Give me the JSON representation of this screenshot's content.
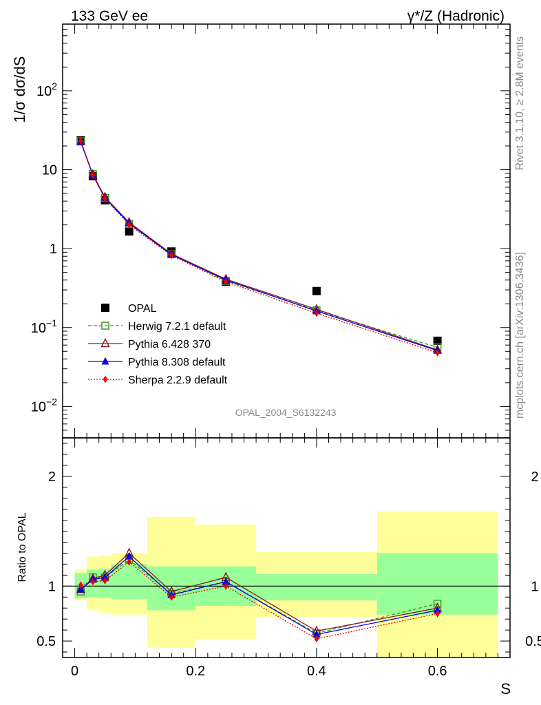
{
  "header": {
    "left_title": "133 GeV ee",
    "right_title": "γ*/Z (Hadronic)"
  },
  "side_labels": {
    "rivet": "Rivet 3.1.10, ≥ 2.8M events",
    "mcplots": "mcplots.cern.ch [arXiv:1306.3436]"
  },
  "watermark": "OPAL_2004_S6132243",
  "chart_data": [
    {
      "type": "scatter",
      "panel": "main",
      "ylabel": "1/σ dσ/dS",
      "y_scale": "log",
      "ylim": [
        0.004,
        700
      ],
      "xlim": [
        -0.02,
        0.72
      ],
      "y_tick_labels": [
        {
          "v": 0.01,
          "label": "10",
          "sup": "−2"
        },
        {
          "v": 0.1,
          "label": "10",
          "sup": "−1"
        },
        {
          "v": 1,
          "label": "1",
          "sup": ""
        },
        {
          "v": 10,
          "label": "10",
          "sup": ""
        },
        {
          "v": 100,
          "label": "10",
          "sup": "2"
        }
      ],
      "legend_position": "lower-left",
      "x": [
        0.01,
        0.03,
        0.05,
        0.09,
        0.16,
        0.25,
        0.4,
        0.6
      ],
      "series": [
        {
          "name": "OPAL",
          "marker": "square-filled",
          "color": "#000000",
          "values": [
            23.5,
            8.3,
            4.1,
            1.65,
            0.92,
            0.38,
            0.29,
            0.068
          ]
        },
        {
          "name": "Herwig 7.2.1 default",
          "marker": "square-open",
          "line": "dashed",
          "color": "#3a9a1a",
          "values": [
            23.0,
            8.8,
            4.4,
            2.05,
            0.85,
            0.39,
            0.165,
            0.056
          ]
        },
        {
          "name": "Pythia 6.428 370",
          "marker": "triangle-open",
          "line": "solid",
          "color": "#8b1a1a",
          "values": [
            22.6,
            8.7,
            4.5,
            2.15,
            0.86,
            0.41,
            0.17,
            0.052
          ]
        },
        {
          "name": "Pythia 8.308 default",
          "marker": "triangle-filled",
          "line": "solid",
          "color": "#0000ee",
          "values": [
            22.4,
            8.5,
            4.4,
            2.1,
            0.84,
            0.4,
            0.162,
            0.051
          ]
        },
        {
          "name": "Sherpa 2.2.9 default",
          "marker": "diamond-filled",
          "line": "dotted",
          "color": "#ee0000",
          "values": [
            23.3,
            8.5,
            4.3,
            2.0,
            0.82,
            0.38,
            0.152,
            0.048
          ]
        }
      ]
    },
    {
      "type": "line",
      "panel": "ratio",
      "ylabel": "Ratio to OPAL",
      "xlabel": "S",
      "ylim": [
        0.35,
        2.35
      ],
      "xlim": [
        -0.02,
        0.72
      ],
      "y_tick_labels": [
        {
          "v": 0.5,
          "label": "0.5"
        },
        {
          "v": 1,
          "label": "1"
        },
        {
          "v": 2,
          "label": "2"
        }
      ],
      "x_tick_labels": [
        {
          "v": 0,
          "label": "0"
        },
        {
          "v": 0.2,
          "label": "0.2"
        },
        {
          "v": 0.4,
          "label": "0.4"
        },
        {
          "v": 0.6,
          "label": "0.6"
        }
      ],
      "reference_line": 1,
      "uncertainty_bands": [
        {
          "lo": 0.0,
          "hi": 0.02,
          "inner": [
            0.89,
            1.12
          ],
          "outer": [
            0.87,
            1.15
          ]
        },
        {
          "lo": 0.02,
          "hi": 0.04,
          "inner": [
            0.9,
            1.15
          ],
          "outer": [
            0.78,
            1.27
          ]
        },
        {
          "lo": 0.04,
          "hi": 0.06,
          "inner": [
            0.89,
            1.16
          ],
          "outer": [
            0.75,
            1.28
          ]
        },
        {
          "lo": 0.06,
          "hi": 0.12,
          "inner": [
            0.88,
            1.2
          ],
          "outer": [
            0.74,
            1.3
          ]
        },
        {
          "lo": 0.12,
          "hi": 0.2,
          "inner": [
            0.78,
            1.18
          ],
          "outer": [
            0.44,
            1.63
          ]
        },
        {
          "lo": 0.2,
          "hi": 0.3,
          "inner": [
            0.82,
            1.18
          ],
          "outer": [
            0.52,
            1.56
          ]
        },
        {
          "lo": 0.3,
          "hi": 0.5,
          "inner": [
            0.87,
            1.11
          ],
          "outer": [
            0.72,
            1.31
          ]
        },
        {
          "lo": 0.5,
          "hi": 0.7,
          "inner": [
            0.74,
            1.3
          ],
          "outer": [
            0.34,
            1.68
          ]
        }
      ],
      "x": [
        0.01,
        0.03,
        0.05,
        0.09,
        0.16,
        0.25,
        0.4,
        0.6
      ],
      "series": [
        {
          "name": "Herwig 7.2.1 default",
          "marker": "square-open",
          "line": "dashed",
          "color": "#3a9a1a",
          "values": [
            0.95,
            1.08,
            1.08,
            1.24,
            0.93,
            1.04,
            0.57,
            0.84
          ]
        },
        {
          "name": "Pythia 6.428 370",
          "marker": "triangle-open",
          "line": "solid",
          "color": "#8b1a1a",
          "values": [
            0.97,
            1.07,
            1.1,
            1.3,
            0.95,
            1.08,
            0.59,
            0.8
          ]
        },
        {
          "name": "Pythia 8.308 default",
          "marker": "triangle-filled",
          "line": "solid",
          "color": "#0000ee",
          "values": [
            0.97,
            1.06,
            1.08,
            1.27,
            0.92,
            1.04,
            0.56,
            0.78
          ]
        },
        {
          "name": "Sherpa 2.2.9 default",
          "marker": "diamond-filled",
          "line": "dotted",
          "color": "#ee0000",
          "values": [
            1.01,
            1.04,
            1.05,
            1.22,
            0.9,
            1.0,
            0.52,
            0.75
          ]
        }
      ]
    }
  ]
}
